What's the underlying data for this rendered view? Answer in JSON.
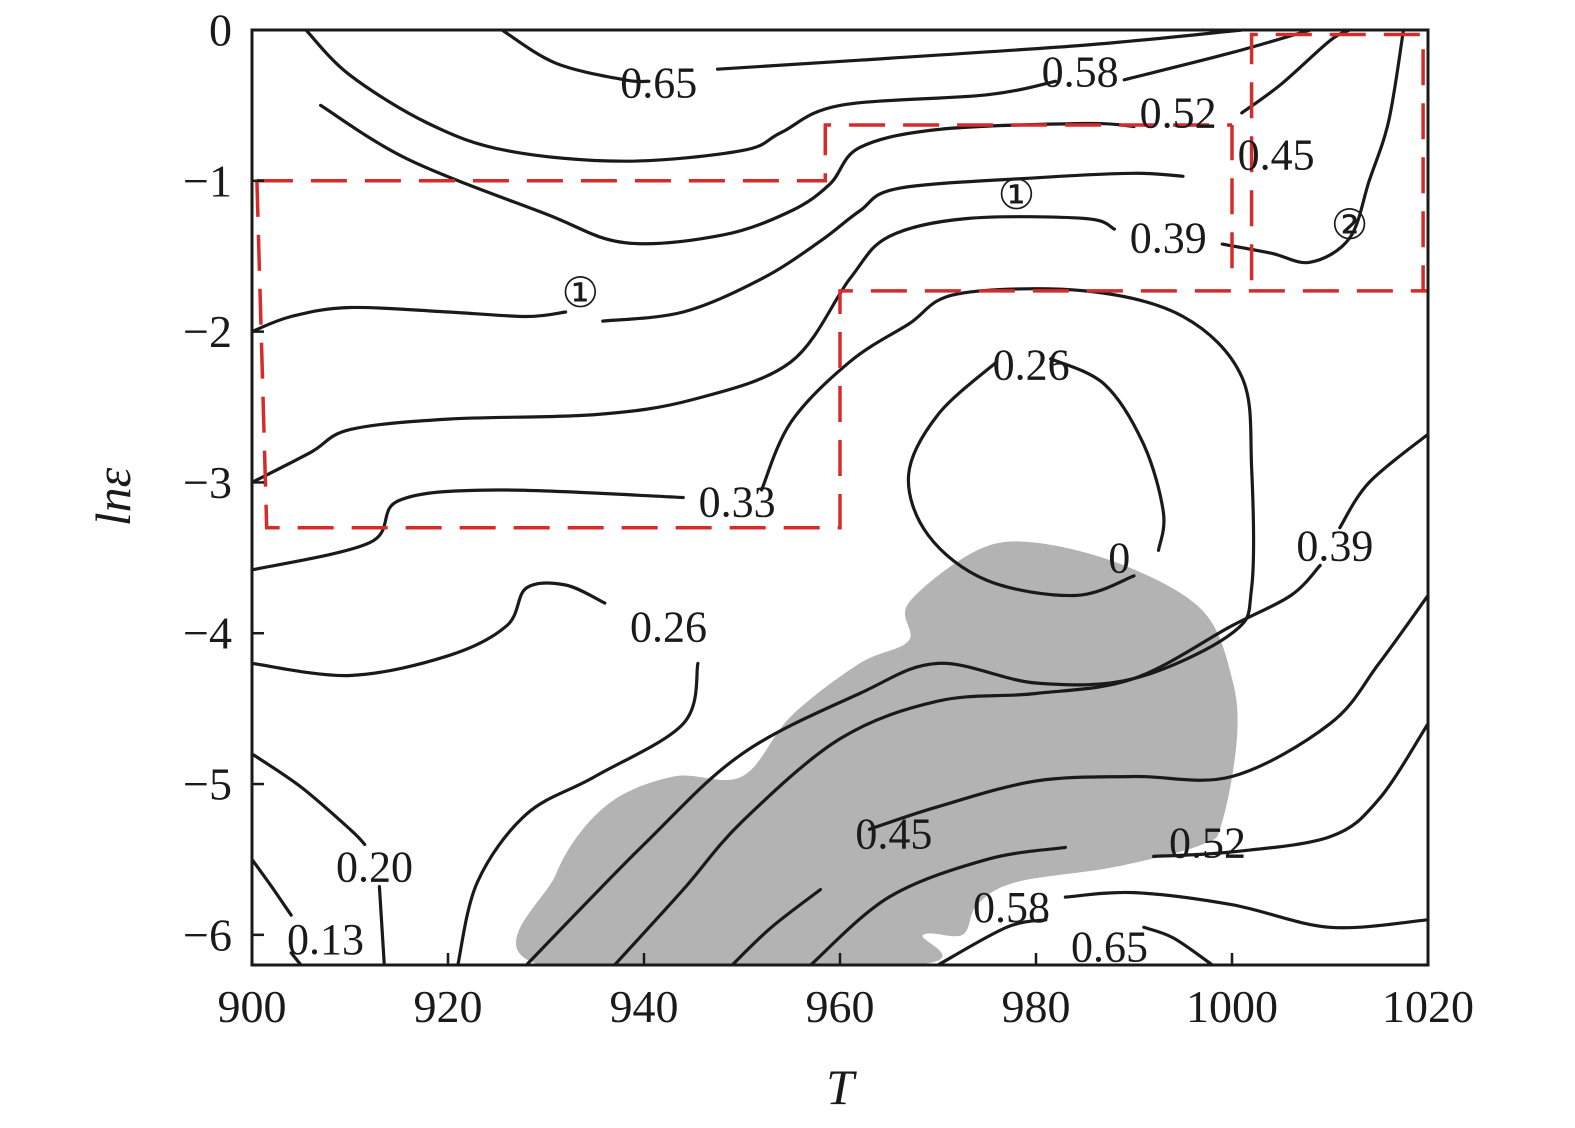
{
  "chart_data": {
    "type": "contour",
    "title": "",
    "xlabel": "T",
    "ylabel": "lnε",
    "xlim": [
      900,
      1020
    ],
    "ylim": [
      -6.2,
      0
    ],
    "x_ticks": [
      "900",
      "920",
      "940",
      "960",
      "980",
      "1000",
      "1020"
    ],
    "y_ticks": [
      "0",
      "−1",
      "−2",
      "−3",
      "−4",
      "−5",
      "−6"
    ],
    "colors": {
      "contour": "#1a1a1a",
      "instability_region": "#b3b3b3",
      "region_box": "#d62b2b"
    },
    "contour_labels": [
      {
        "text": "0.65",
        "T": 941.5,
        "lne": -0.35
      },
      {
        "text": "0.58",
        "T": 984.5,
        "lne": -0.28
      },
      {
        "text": "0.52",
        "T": 994.5,
        "lne": -0.55
      },
      {
        "text": "0.45",
        "T": 1004.5,
        "lne": -0.83
      },
      {
        "text": "0.39",
        "T": 993.5,
        "lne": -1.38
      },
      {
        "text": "0.26",
        "T": 979.5,
        "lne": -2.22
      },
      {
        "text": "0.33",
        "T": 949.5,
        "lne": -3.13
      },
      {
        "text": "0",
        "T": 988.5,
        "lne": -3.5
      },
      {
        "text": "0.39",
        "T": 1010.5,
        "lne": -3.42
      },
      {
        "text": "0.26",
        "T": 942.5,
        "lne": -3.96
      },
      {
        "text": "0.45",
        "T": 965.5,
        "lne": -5.33
      },
      {
        "text": "0.52",
        "T": 997.5,
        "lne": -5.39
      },
      {
        "text": "0.58",
        "T": 977.5,
        "lne": -5.82
      },
      {
        "text": "0.65",
        "T": 987.5,
        "lne": -6.08
      },
      {
        "text": "0.20",
        "T": 912.5,
        "lne": -5.55
      },
      {
        "text": "0.13",
        "T": 907.5,
        "lne": -6.03
      }
    ],
    "regions": [
      {
        "label": "①",
        "T": 933.5,
        "lne": -1.75
      },
      {
        "label": "①",
        "T": 978,
        "lne": -1.1
      },
      {
        "label": "②",
        "T": 1012,
        "lne": -1.3
      }
    ],
    "contours": [
      {
        "level": "0.65",
        "points": [
          [
            925.5,
            0
          ],
          [
            931,
            -0.22
          ],
          [
            938,
            -0.33
          ],
          [
            940.5,
            -0.34
          ]
        ]
      },
      {
        "level": "0.65",
        "points": [
          [
            947.5,
            -0.26
          ],
          [
            962,
            -0.2
          ],
          [
            985,
            -0.1
          ],
          [
            1001,
            0
          ]
        ]
      },
      {
        "level": "0.58",
        "points": [
          [
            905.5,
            0
          ],
          [
            910,
            -0.3
          ],
          [
            918,
            -0.62
          ],
          [
            926,
            -0.8
          ],
          [
            938,
            -0.87
          ],
          [
            950,
            -0.8
          ],
          [
            954,
            -0.68
          ],
          [
            960,
            -0.5
          ],
          [
            975,
            -0.43
          ],
          [
            982,
            -0.34
          ]
        ]
      },
      {
        "level": "0.58",
        "points": [
          [
            989,
            -0.33
          ],
          [
            1000,
            -0.15
          ],
          [
            1008,
            0
          ]
        ]
      },
      {
        "level": "0.52",
        "points": [
          [
            907,
            -0.5
          ],
          [
            916,
            -0.86
          ],
          [
            930,
            -1.22
          ],
          [
            938,
            -1.41
          ],
          [
            948,
            -1.36
          ],
          [
            955,
            -1.2
          ],
          [
            959,
            -1.02
          ],
          [
            962,
            -0.78
          ],
          [
            970,
            -0.66
          ],
          [
            985,
            -0.62
          ],
          [
            990,
            -0.64
          ]
        ]
      },
      {
        "level": "0.52",
        "points": [
          [
            1001,
            -0.55
          ],
          [
            1005,
            -0.36
          ],
          [
            1010,
            -0.07
          ],
          [
            1012,
            0
          ]
        ]
      },
      {
        "level": "0.45",
        "points": [
          [
            900,
            -2.0
          ],
          [
            904,
            -1.9
          ],
          [
            910,
            -1.84
          ],
          [
            920,
            -1.87
          ],
          [
            928,
            -1.9
          ],
          [
            932,
            -1.87
          ]
        ]
      },
      {
        "level": "0.45",
        "points": [
          [
            935.8,
            -1.93
          ],
          [
            944,
            -1.87
          ],
          [
            952,
            -1.65
          ],
          [
            958,
            -1.4
          ],
          [
            962,
            -1.2
          ],
          [
            966,
            -1.05
          ],
          [
            980,
            -0.98
          ],
          [
            990,
            -0.95
          ],
          [
            995,
            -0.97
          ]
        ]
      },
      {
        "level": "0.39",
        "points": [
          [
            900,
            -3.0
          ],
          [
            906,
            -2.8
          ],
          [
            910,
            -2.65
          ],
          [
            920,
            -2.58
          ],
          [
            935,
            -2.55
          ],
          [
            945,
            -2.45
          ],
          [
            955,
            -2.2
          ],
          [
            961,
            -1.65
          ],
          [
            965,
            -1.37
          ],
          [
            973,
            -1.25
          ],
          [
            985,
            -1.25
          ],
          [
            988,
            -1.32
          ]
        ]
      },
      {
        "level": "0.39",
        "points": [
          [
            999,
            -1.42
          ],
          [
            1004,
            -1.48
          ],
          [
            1008,
            -1.54
          ],
          [
            1012,
            -1.38
          ],
          [
            1014,
            -1.0
          ],
          [
            1016,
            -0.6
          ],
          [
            1017.5,
            0
          ]
        ]
      },
      {
        "level": "0.33",
        "points": [
          [
            900,
            -3.58
          ],
          [
            912,
            -3.4
          ],
          [
            915,
            -3.12
          ],
          [
            925,
            -3.05
          ],
          [
            944,
            -3.1
          ]
        ]
      },
      {
        "level": "0.33",
        "points": [
          [
            952,
            -3.05
          ],
          [
            955,
            -2.6
          ],
          [
            961,
            -2.2
          ],
          [
            967,
            -1.95
          ],
          [
            972,
            -1.75
          ],
          [
            985,
            -1.73
          ],
          [
            995,
            -1.9
          ],
          [
            1001,
            -2.3
          ],
          [
            1002,
            -2.9
          ],
          [
            1002,
            -3.7
          ],
          [
            1000,
            -4.0
          ],
          [
            990,
            -4.3
          ],
          [
            980,
            -4.33
          ],
          [
            970,
            -4.2
          ],
          [
            962,
            -4.4
          ],
          [
            950,
            -4.8
          ],
          [
            940,
            -5.4
          ],
          [
            928,
            -6.2
          ]
        ]
      },
      {
        "level": "0.26",
        "points": [
          [
            900,
            -4.2
          ],
          [
            910,
            -4.28
          ],
          [
            920,
            -4.15
          ],
          [
            926,
            -3.95
          ],
          [
            928,
            -3.7
          ],
          [
            932,
            -3.68
          ],
          [
            936,
            -3.8
          ]
        ]
      },
      {
        "level": "0.26",
        "points": [
          [
            945.5,
            -4.2
          ],
          [
            944,
            -4.6
          ],
          [
            935,
            -4.95
          ],
          [
            928,
            -5.2
          ],
          [
            923,
            -5.65
          ],
          [
            921,
            -6.2
          ]
        ]
      },
      {
        "level": "0.26",
        "points": [
          [
            976,
            -2.2
          ],
          [
            970,
            -2.55
          ],
          [
            967,
            -2.95
          ],
          [
            969,
            -3.35
          ],
          [
            975,
            -3.65
          ],
          [
            984,
            -3.75
          ],
          [
            990,
            -3.62
          ]
        ]
      },
      {
        "level": "0.26",
        "points": [
          [
            981.5,
            -2.18
          ],
          [
            987,
            -2.35
          ],
          [
            991,
            -2.75
          ],
          [
            993,
            -3.2
          ],
          [
            992.5,
            -3.45
          ]
        ]
      },
      {
        "level": "0.20",
        "points": [
          [
            900,
            -4.8
          ],
          [
            905,
            -5.02
          ],
          [
            910,
            -5.3
          ],
          [
            911.5,
            -5.4
          ]
        ]
      },
      {
        "level": "0.20",
        "points": [
          [
            913,
            -5.68
          ],
          [
            913.5,
            -6.2
          ]
        ]
      },
      {
        "level": "0.13",
        "points": [
          [
            900,
            -5.5
          ],
          [
            902,
            -5.68
          ],
          [
            904,
            -5.87
          ]
        ]
      },
      {
        "level": "0.13",
        "points": [
          [
            904,
            -6.12
          ],
          [
            905,
            -6.2
          ]
        ]
      },
      {
        "level": "0.39",
        "points": [
          [
            1020,
            -2.68
          ],
          [
            1014,
            -3.0
          ],
          [
            1011,
            -3.3
          ]
        ]
      },
      {
        "level": "0.39",
        "points": [
          [
            1009,
            -3.55
          ],
          [
            1006,
            -3.75
          ],
          [
            1000,
            -3.95
          ],
          [
            990,
            -4.3
          ],
          [
            980,
            -4.4
          ],
          [
            970,
            -4.45
          ],
          [
            960,
            -4.7
          ],
          [
            950,
            -5.25
          ],
          [
            944,
            -5.7
          ],
          [
            937,
            -6.2
          ]
        ]
      },
      {
        "level": "0.45",
        "points": [
          [
            1020,
            -3.75
          ],
          [
            1015,
            -4.2
          ],
          [
            1010,
            -4.6
          ],
          [
            1000,
            -4.95
          ],
          [
            990,
            -4.95
          ],
          [
            980,
            -4.98
          ],
          [
            970,
            -5.15
          ],
          [
            963,
            -5.3
          ]
        ]
      },
      {
        "level": "0.45",
        "points": [
          [
            958,
            -5.7
          ],
          [
            953,
            -5.95
          ],
          [
            949,
            -6.2
          ]
        ]
      },
      {
        "level": "0.52",
        "points": [
          [
            1020,
            -4.6
          ],
          [
            1015,
            -5.1
          ],
          [
            1010,
            -5.35
          ],
          [
            1000,
            -5.45
          ],
          [
            992,
            -5.48
          ]
        ]
      },
      {
        "level": "0.52",
        "points": [
          [
            983,
            -5.42
          ],
          [
            975,
            -5.5
          ],
          [
            965,
            -5.75
          ],
          [
            957,
            -6.2
          ]
        ]
      },
      {
        "level": "0.58",
        "points": [
          [
            1020,
            -5.9
          ],
          [
            1010,
            -5.95
          ],
          [
            1000,
            -5.8
          ],
          [
            990,
            -5.72
          ],
          [
            983,
            -5.75
          ]
        ]
      },
      {
        "level": "0.65",
        "points": [
          [
            970,
            -6.2
          ],
          [
            977,
            -5.95
          ],
          [
            981,
            -5.9
          ]
        ]
      },
      {
        "level": "0.65",
        "points": [
          [
            991,
            -5.95
          ],
          [
            994,
            -6.02
          ],
          [
            998,
            -6.2
          ]
        ]
      }
    ],
    "instability_region": [
      [
        929.5,
        -6.2
      ],
      [
        931,
        -5.6
      ],
      [
        936,
        -5.15
      ],
      [
        943,
        -4.95
      ],
      [
        950,
        -4.95
      ],
      [
        955,
        -4.55
      ],
      [
        962,
        -4.2
      ],
      [
        967,
        -4.05
      ],
      [
        967,
        -3.8
      ],
      [
        974,
        -3.45
      ],
      [
        980,
        -3.4
      ],
      [
        989,
        -3.55
      ],
      [
        997,
        -3.85
      ],
      [
        1000,
        -4.3
      ],
      [
        1000.5,
        -4.7
      ],
      [
        999,
        -5.25
      ],
      [
        997,
        -5.4
      ],
      [
        988,
        -5.55
      ],
      [
        978,
        -5.65
      ],
      [
        974,
        -5.8
      ],
      [
        972.5,
        -6.0
      ],
      [
        968.5,
        -6.0
      ],
      [
        967.5,
        -6.2
      ]
    ],
    "region_boxes": [
      {
        "label": "①",
        "points": [
          [
            900.5,
            -1.0
          ],
          [
            958.5,
            -1.0
          ],
          [
            958.5,
            -0.63
          ],
          [
            1000,
            -0.63
          ]
        ]
      },
      {
        "label": "①",
        "points": [
          [
            900.5,
            -1.0
          ],
          [
            901.5,
            -3.3
          ],
          [
            960,
            -3.3
          ],
          [
            960,
            -1.73
          ],
          [
            1020,
            -1.73
          ]
        ]
      },
      {
        "label": "②",
        "points": [
          [
            1000,
            -1.58
          ],
          [
            1000,
            -0.63
          ]
        ]
      },
      {
        "label": "②",
        "points": [
          [
            1002,
            -1.66
          ],
          [
            1002,
            -0.03
          ],
          [
            1019.5,
            -0.03
          ],
          [
            1019.5,
            -1.73
          ]
        ]
      }
    ]
  }
}
